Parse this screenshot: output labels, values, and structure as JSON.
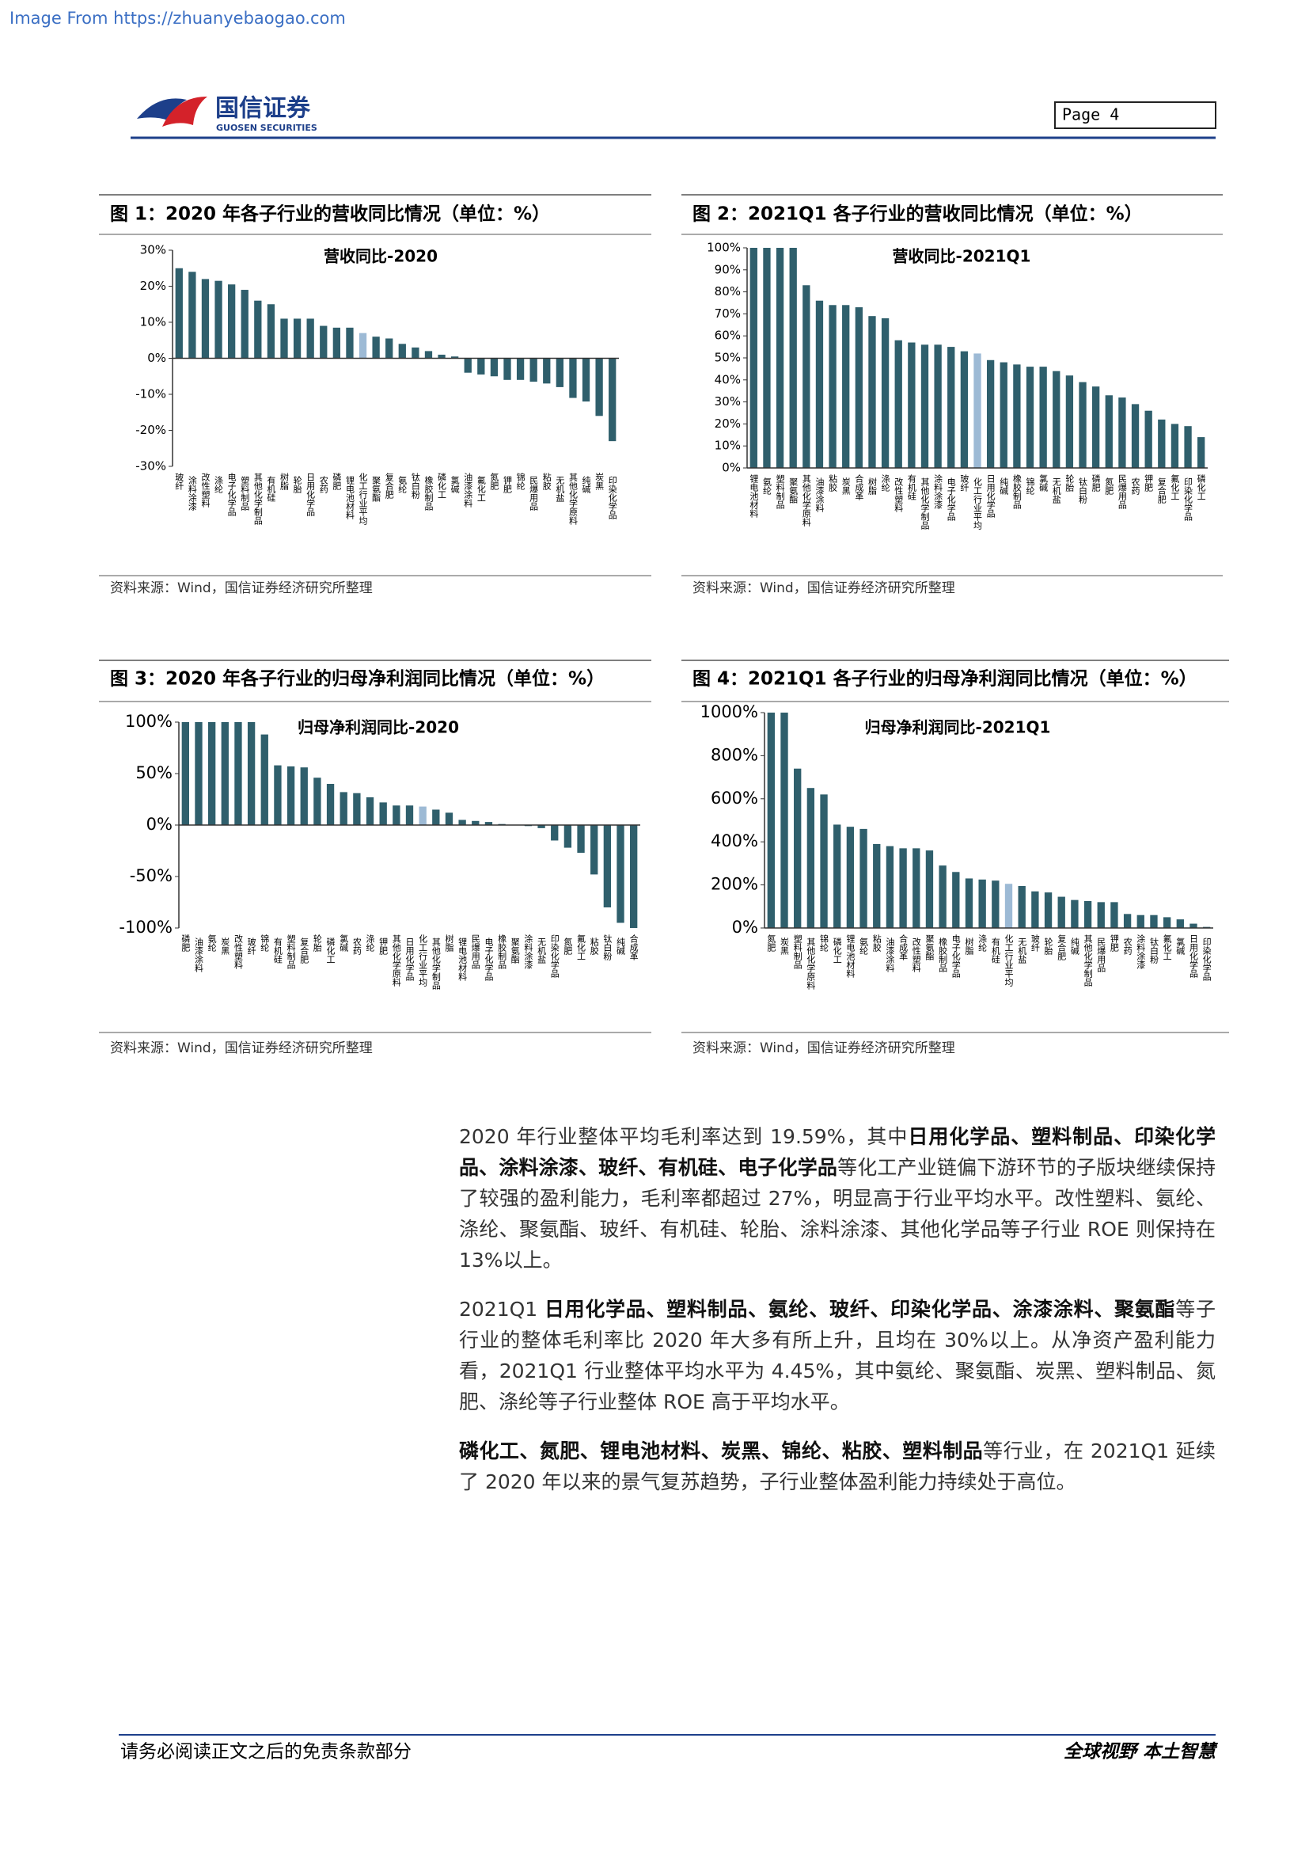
{
  "header": {
    "source_link": "Image From https://zhuanyebaogao.com",
    "logo_name": "国信证券",
    "logo_sub": "GUOSEN SECURITIES",
    "page": "Page  4"
  },
  "chart_data": [
    {
      "type": "bar",
      "caption": "图 1：2020 年各子行业的营收同比情况（单位：%）",
      "title": "营收同比-2020",
      "source": "资料来源：Wind，国信证券经济研究所整理",
      "color": "#2f5f6c",
      "highlight": {
        "category": "化工行业平均",
        "color": "#9dbad5"
      },
      "categories": [
        "玻纤",
        "涂料涂漆",
        "改性塑料",
        "涤纶",
        "电子化学品",
        "塑料制品",
        "其他化学制品",
        "有机硅",
        "树脂",
        "轮胎",
        "日用化学品",
        "农药",
        "磷肥",
        "锂电池材料",
        "化工行业平均",
        "聚氨酯",
        "复合肥",
        "氨纶",
        "钛白粉",
        "橡胶制品",
        "磷化工",
        "氯碱",
        "油漆涂料",
        "氟化工",
        "氮肥",
        "钾肥",
        "锦纶",
        "民爆用品",
        "粘胶",
        "无机盐",
        "其他化学原料",
        "纯碱",
        "炭黑",
        "印染化学品"
      ],
      "values": [
        25,
        24,
        22,
        21.5,
        20.5,
        19,
        16,
        15,
        11,
        11,
        11,
        9,
        8.5,
        8.5,
        7,
        6,
        5.5,
        4,
        3,
        2,
        1,
        0.5,
        -4,
        -4.5,
        -5,
        -6,
        -6,
        -6.5,
        -7,
        -8,
        -11,
        -12,
        -16,
        -23
      ],
      "ylim": [
        -30,
        30
      ],
      "yticks": [
        {
          "value": 30,
          "label": "30%"
        },
        {
          "value": 20,
          "label": "20%"
        },
        {
          "value": 10,
          "label": "10%"
        },
        {
          "value": 0,
          "label": "0%"
        },
        {
          "value": -10,
          "label": "-10%"
        },
        {
          "value": -20,
          "label": "-20%"
        },
        {
          "value": -30,
          "label": "-30%"
        }
      ]
    },
    {
      "type": "bar",
      "caption": "图 2：2021Q1 各子行业的营收同比情况（单位：%）",
      "title": "营收同比-2021Q1",
      "source": "资料来源：Wind，国信证券经济研究所整理",
      "color": "#2f5f6c",
      "highlight": {
        "category": "化工行业平均",
        "color": "#9dbad5"
      },
      "categories": [
        "锂电池材料",
        "氨纶",
        "塑料制品",
        "聚氨酯",
        "其他化学原料",
        "油漆涂料",
        "粘胶",
        "炭黑",
        "合成革",
        "树脂",
        "涤纶",
        "改性塑料",
        "有机硅",
        "其他化学制品",
        "涂料涂漆",
        "电子化学品",
        "玻纤",
        "化工行业平均",
        "日用化学品",
        "纯碱",
        "橡胶制品",
        "锦纶",
        "氯碱",
        "无机盐",
        "轮胎",
        "钛白粉",
        "磷肥",
        "氮肥",
        "民爆用品",
        "农药",
        "钾肥",
        "复合肥",
        "氟化工",
        "印染化学品",
        "磷化工"
      ],
      "values": [
        100,
        100,
        100,
        100,
        83,
        76,
        74,
        74,
        73,
        69,
        68,
        58,
        57,
        56,
        56,
        55,
        53,
        52,
        49,
        48,
        47,
        46,
        46,
        44,
        42,
        39,
        37,
        33,
        32,
        29,
        26,
        22,
        20,
        19,
        14
      ],
      "ylim": [
        0,
        100
      ],
      "yticks": [
        {
          "value": 100,
          "label": "100%"
        },
        {
          "value": 90,
          "label": "90%"
        },
        {
          "value": 80,
          "label": "80%"
        },
        {
          "value": 70,
          "label": "70%"
        },
        {
          "value": 60,
          "label": "60%"
        },
        {
          "value": 50,
          "label": "50%"
        },
        {
          "value": 40,
          "label": "40%"
        },
        {
          "value": 30,
          "label": "30%"
        },
        {
          "value": 20,
          "label": "20%"
        },
        {
          "value": 10,
          "label": "10%"
        },
        {
          "value": 0,
          "label": "0%"
        }
      ]
    },
    {
      "type": "bar",
      "caption": "图 3：2020 年各子行业的归母净利润同比情况（单位：%）",
      "title": "归母净利润同比-2020",
      "source": "资料来源：Wind，国信证券经济研究所整理",
      "color": "#2f5f6c",
      "highlight": {
        "category": "化工行业平均",
        "color": "#9dbad5"
      },
      "categories": [
        "磷肥",
        "油漆涂料",
        "氨纶",
        "炭黑",
        "改性塑料",
        "玻纤",
        "锦纶",
        "有机硅",
        "塑料制品",
        "复合肥",
        "轮胎",
        "磷化工",
        "氯碱",
        "农药",
        "涤纶",
        "钾肥",
        "其他化学原料",
        "日用化学品",
        "化工行业平均",
        "其他化学制品",
        "树脂",
        "锂电池材料",
        "民爆用品",
        "电子化学品",
        "橡胶制品",
        "聚氨酯",
        "涂料涂漆",
        "无机盐",
        "印染化学品",
        "氮肥",
        "氟化工",
        "粘胶",
        "钛白粉",
        "纯碱",
        "合成革"
      ],
      "values": [
        100,
        100,
        100,
        100,
        100,
        100,
        88,
        58,
        57,
        56,
        46,
        40,
        32,
        31,
        27,
        22,
        19,
        19,
        18,
        15,
        12,
        5,
        4,
        3,
        1,
        0,
        -1,
        -3,
        -15,
        -22,
        -27,
        -48,
        -80,
        -95,
        -100
      ],
      "ylim": [
        -100,
        100
      ],
      "yticks": [
        {
          "value": 100,
          "label": "100%"
        },
        {
          "value": 50,
          "label": "50%"
        },
        {
          "value": 0,
          "label": "0%"
        },
        {
          "value": -50,
          "label": "-50%"
        },
        {
          "value": -100,
          "label": "-100%"
        }
      ]
    },
    {
      "type": "bar",
      "caption": "图 4：2021Q1 各子行业的归母净利润同比情况（单位：%）",
      "title": "归母净利润同比-2021Q1",
      "source": "资料来源：Wind，国信证券经济研究所整理",
      "color": "#2f5f6c",
      "highlight": {
        "category": "化工行业平均",
        "color": "#9dbad5"
      },
      "categories": [
        "氮肥",
        "炭黑",
        "塑料制品",
        "其他化学原料",
        "锦纶",
        "磷化工",
        "锂电池材料",
        "氨纶",
        "粘胶",
        "油漆涂料",
        "合成革",
        "改性塑料",
        "聚氨酯",
        "橡胶制品",
        "电子化学品",
        "树脂",
        "涤纶",
        "有机硅",
        "化工行业平均",
        "无机盐",
        "玻纤",
        "轮胎",
        "复合肥",
        "纯碱",
        "其他化学制品",
        "民爆用品",
        "钾肥",
        "农药",
        "涂料涂漆",
        "钛白粉",
        "氟化工",
        "氯碱",
        "日用化学品",
        "印染化学品"
      ],
      "values": [
        1000,
        1000,
        740,
        650,
        620,
        480,
        470,
        460,
        390,
        380,
        370,
        370,
        360,
        290,
        260,
        230,
        225,
        220,
        205,
        195,
        170,
        165,
        145,
        130,
        125,
        120,
        120,
        65,
        60,
        60,
        50,
        40,
        20,
        5
      ],
      "ylim": [
        0,
        1000
      ],
      "yticks": [
        {
          "value": 1000,
          "label": "1000%"
        },
        {
          "value": 800,
          "label": "800%"
        },
        {
          "value": 600,
          "label": "600%"
        },
        {
          "value": 400,
          "label": "400%"
        },
        {
          "value": 200,
          "label": "200%"
        },
        {
          "value": 0,
          "label": "0%"
        }
      ]
    }
  ],
  "paragraphs": [
    [
      {
        "text": "2020 年行业整体平均毛利率达到 19.59%，其中",
        "bold": false
      },
      {
        "text": "日用化学品、塑料制品、印染化学品、涂料涂漆、玻纤、有机硅、电子化学品",
        "bold": true
      },
      {
        "text": "等化工产业链偏下游环节的子版块继续保持了较强的盈利能力，毛利率都超过 27%，明显高于行业平均水平。改性塑料、氨纶、涤纶、聚氨酯、玻纤、有机硅、轮胎、涂料涂漆、其他化学品等子行业 ROE 则保持在 13%以上。",
        "bold": false
      }
    ],
    [
      {
        "text": "2021Q1 ",
        "bold": false
      },
      {
        "text": "日用化学品、塑料制品、氨纶、玻纤、印染化学品、涂漆涂料、聚氨酯",
        "bold": true
      },
      {
        "text": "等子行业的整体毛利率比 2020 年大多有所上升，且均在 30%以上。从净资产盈利能力看，2021Q1 行业整体平均水平为 4.45%，其中氨纶、聚氨酯、炭黑、塑料制品、氮肥、涤纶等子行业整体 ROE 高于平均水平。",
        "bold": false
      }
    ],
    [
      {
        "text": "磷化工、氮肥、锂电池材料、炭黑、锦纶、粘胶、塑料制品",
        "bold": true
      },
      {
        "text": "等行业，在 2021Q1 延续了 2020 年以来的景气复苏趋势，子行业整体盈利能力持续处于高位。",
        "bold": false
      }
    ]
  ],
  "footer": {
    "disclaimer": "请务必阅读正文之后的免责条款部分",
    "slogan": "全球视野  本土智慧"
  }
}
